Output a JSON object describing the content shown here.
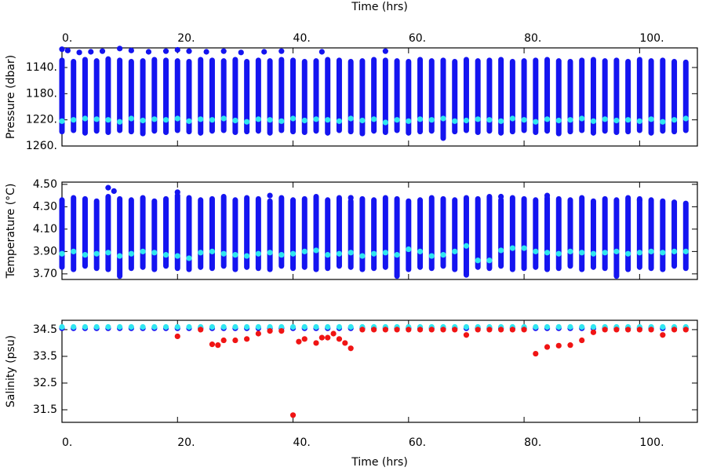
{
  "chart_data": [
    {
      "type": "scatter",
      "x_label": "Time (hrs)",
      "x_axis": "top",
      "y_label": "Pressure (dbar)",
      "xlim": [
        0,
        110
      ],
      "xticks": [
        {
          "value": 0,
          "label": "0."
        },
        {
          "value": 20,
          "label": "20."
        },
        {
          "value": 40,
          "label": "40."
        },
        {
          "value": 60,
          "label": "60."
        },
        {
          "value": 80,
          "label": "80."
        },
        {
          "value": 100,
          "label": "100."
        }
      ],
      "ylim": [
        1110,
        1260
      ],
      "y_inverted": true,
      "yticks": [
        {
          "value": 1140,
          "label": "1140."
        },
        {
          "value": 1180,
          "label": "1180."
        },
        {
          "value": 1220,
          "label": "1220."
        },
        {
          "value": 1260,
          "label": "1260."
        }
      ],
      "series": [
        {
          "kind": "range",
          "color": "#1414f0",
          "x": [
            0,
            2,
            4,
            6,
            8,
            10,
            12,
            14,
            16,
            18,
            20,
            22,
            24,
            26,
            28,
            30,
            32,
            34,
            36,
            38,
            40,
            42,
            44,
            46,
            48,
            50,
            52,
            54,
            56,
            58,
            60,
            62,
            64,
            66,
            68,
            70,
            72,
            74,
            76,
            78,
            80,
            82,
            84,
            86,
            88,
            90,
            92,
            94,
            96,
            98,
            100,
            102,
            104,
            106,
            108
          ],
          "low": [
            1129,
            1131,
            1128,
            1130,
            1127,
            1129,
            1131,
            1130,
            1128,
            1129,
            1130,
            1131,
            1128,
            1129,
            1130,
            1128,
            1131,
            1129,
            1130,
            1128,
            1129,
            1131,
            1130,
            1128,
            1129,
            1131,
            1130,
            1128,
            1129,
            1130,
            1131,
            1128,
            1130,
            1129,
            1131,
            1128,
            1130,
            1129,
            1128,
            1131,
            1130,
            1129,
            1128,
            1130,
            1131,
            1129,
            1128,
            1130,
            1129,
            1131,
            1128,
            1130,
            1129,
            1131,
            1132
          ],
          "high": [
            1238,
            1236,
            1240,
            1237,
            1239,
            1236,
            1238,
            1241,
            1237,
            1239,
            1236,
            1238,
            1240,
            1237,
            1236,
            1239,
            1238,
            1237,
            1240,
            1236,
            1238,
            1239,
            1237,
            1240,
            1236,
            1238,
            1241,
            1237,
            1239,
            1236,
            1240,
            1238,
            1237,
            1248,
            1238,
            1236,
            1239,
            1237,
            1240,
            1238,
            1236,
            1239,
            1237,
            1241,
            1238,
            1236,
            1240,
            1237,
            1239,
            1238,
            1236,
            1240,
            1237,
            1238,
            1236
          ]
        },
        {
          "kind": "points",
          "color": "#1414f0",
          "x": [
            0,
            1,
            3,
            5,
            7,
            10,
            12,
            15,
            18,
            20,
            22,
            25,
            28,
            31,
            35,
            38,
            45,
            56
          ],
          "values": [
            1112,
            1114,
            1117,
            1116,
            1115,
            1111,
            1114,
            1116,
            1115,
            1113,
            1115,
            1116,
            1115,
            1117,
            1116,
            1115,
            1116,
            1115
          ]
        },
        {
          "kind": "points",
          "color": "#30e6f0",
          "x": [
            0,
            2,
            4,
            6,
            8,
            10,
            12,
            14,
            16,
            18,
            20,
            22,
            24,
            26,
            28,
            30,
            32,
            34,
            36,
            38,
            40,
            42,
            44,
            46,
            48,
            50,
            52,
            54,
            56,
            58,
            60,
            62,
            64,
            66,
            68,
            70,
            72,
            74,
            76,
            78,
            80,
            82,
            84,
            86,
            88,
            90,
            92,
            94,
            96,
            98,
            100,
            102,
            104,
            106,
            108
          ],
          "values": [
            1222,
            1220,
            1218,
            1219,
            1220,
            1223,
            1218,
            1221,
            1219,
            1220,
            1218,
            1222,
            1219,
            1220,
            1218,
            1221,
            1223,
            1219,
            1220,
            1222,
            1218,
            1221,
            1219,
            1220,
            1222,
            1218,
            1221,
            1219,
            1224,
            1220,
            1222,
            1219,
            1220,
            1218,
            1222,
            1221,
            1219,
            1220,
            1222,
            1218,
            1220,
            1223,
            1219,
            1221,
            1220,
            1218,
            1222,
            1219,
            1221,
            1220,
            1222,
            1219,
            1223,
            1220,
            1218
          ]
        }
      ]
    },
    {
      "type": "scatter",
      "y_label": "Temperature (°C)",
      "xlim": [
        0,
        110
      ],
      "xticks": [
        0,
        20,
        40,
        60,
        80,
        100
      ],
      "ylim": [
        3.65,
        4.52
      ],
      "yticks": [
        {
          "value": 3.7,
          "label": "3.70"
        },
        {
          "value": 3.9,
          "label": "3.90"
        },
        {
          "value": 4.1,
          "label": "4.10"
        },
        {
          "value": 4.3,
          "label": "4.30"
        },
        {
          "value": 4.5,
          "label": "4.50"
        }
      ],
      "series": [
        {
          "kind": "range",
          "color": "#1414f0",
          "x": [
            0,
            2,
            4,
            6,
            8,
            10,
            12,
            14,
            16,
            18,
            20,
            22,
            24,
            26,
            28,
            30,
            32,
            34,
            36,
            38,
            40,
            42,
            44,
            46,
            48,
            50,
            52,
            54,
            56,
            58,
            60,
            62,
            64,
            66,
            68,
            70,
            72,
            74,
            76,
            78,
            80,
            82,
            84,
            86,
            88,
            90,
            92,
            94,
            96,
            98,
            100,
            102,
            104,
            106,
            108
          ],
          "low": [
            3.76,
            3.74,
            3.77,
            3.75,
            3.74,
            3.68,
            3.75,
            3.76,
            3.74,
            3.77,
            3.75,
            3.74,
            3.76,
            3.75,
            3.77,
            3.74,
            3.76,
            3.75,
            3.74,
            3.77,
            3.75,
            3.76,
            3.74,
            3.75,
            3.77,
            3.76,
            3.74,
            3.75,
            3.76,
            3.68,
            3.74,
            3.76,
            3.75,
            3.77,
            3.74,
            3.69,
            3.76,
            3.75,
            3.77,
            3.74,
            3.75,
            3.76,
            3.74,
            3.75,
            3.77,
            3.74,
            3.76,
            3.75,
            3.68,
            3.74,
            3.76,
            3.75,
            3.74,
            3.77,
            3.75
          ],
          "high": [
            4.36,
            4.38,
            4.37,
            4.35,
            4.39,
            4.37,
            4.36,
            4.38,
            4.35,
            4.37,
            4.4,
            4.38,
            4.36,
            4.37,
            4.39,
            4.36,
            4.38,
            4.37,
            4.35,
            4.38,
            4.36,
            4.37,
            4.39,
            4.36,
            4.38,
            4.35,
            4.37,
            4.36,
            4.38,
            4.37,
            4.35,
            4.36,
            4.38,
            4.37,
            4.36,
            4.38,
            4.37,
            4.39,
            4.36,
            4.38,
            4.37,
            4.36,
            4.38,
            4.37,
            4.36,
            4.38,
            4.35,
            4.37,
            4.36,
            4.38,
            4.37,
            4.36,
            4.35,
            4.34,
            4.33
          ]
        },
        {
          "kind": "points",
          "color": "#1414f0",
          "x": [
            8,
            9,
            20,
            36,
            50,
            76,
            84,
            100
          ],
          "values": [
            4.47,
            4.44,
            4.43,
            4.4,
            4.38,
            4.39,
            4.4,
            4.36
          ]
        },
        {
          "kind": "points",
          "color": "#30e6f0",
          "x": [
            0,
            2,
            4,
            6,
            8,
            10,
            12,
            14,
            16,
            18,
            20,
            22,
            24,
            26,
            28,
            30,
            32,
            34,
            36,
            38,
            40,
            42,
            44,
            46,
            48,
            50,
            52,
            54,
            56,
            58,
            60,
            62,
            64,
            66,
            68,
            70,
            72,
            74,
            76,
            78,
            80,
            82,
            84,
            86,
            88,
            90,
            92,
            94,
            96,
            98,
            100,
            102,
            104,
            106,
            108
          ],
          "values": [
            3.88,
            3.9,
            3.87,
            3.88,
            3.89,
            3.86,
            3.88,
            3.9,
            3.89,
            3.87,
            3.86,
            3.84,
            3.89,
            3.9,
            3.88,
            3.87,
            3.86,
            3.88,
            3.89,
            3.87,
            3.88,
            3.9,
            3.91,
            3.87,
            3.88,
            3.89,
            3.86,
            3.88,
            3.89,
            3.87,
            3.92,
            3.9,
            3.86,
            3.87,
            3.9,
            3.95,
            3.82,
            3.82,
            3.91,
            3.93,
            3.93,
            3.9,
            3.89,
            3.88,
            3.9,
            3.89,
            3.88,
            3.89,
            3.9,
            3.88,
            3.89,
            3.9,
            3.89,
            3.9,
            3.9
          ]
        }
      ]
    },
    {
      "type": "scatter",
      "x_label": "Time (hrs)",
      "x_axis": "bottom",
      "y_label": "Salinity (psu)",
      "xlim": [
        0,
        110
      ],
      "xticks": [
        {
          "value": 0,
          "label": "0."
        },
        {
          "value": 20,
          "label": "20."
        },
        {
          "value": 40,
          "label": "40."
        },
        {
          "value": 60,
          "label": "60."
        },
        {
          "value": 80,
          "label": "80."
        },
        {
          "value": 100,
          "label": "100."
        }
      ],
      "ylim": [
        31.03,
        34.85
      ],
      "yticks": [
        31.5,
        32.5,
        33.5,
        34.5
      ],
      "series": [
        {
          "kind": "points",
          "color": "#1414f0",
          "x": [
            0,
            2,
            4,
            6,
            8,
            10,
            12,
            14,
            16,
            18,
            20,
            22,
            24,
            26,
            28,
            30,
            32,
            34,
            36,
            38,
            40,
            42,
            44,
            46,
            48,
            50,
            52,
            54,
            56,
            58,
            60,
            62,
            64,
            66,
            68,
            70,
            72,
            74,
            76,
            78,
            80,
            82,
            84,
            86,
            88,
            90,
            92,
            94,
            96,
            98,
            100,
            102,
            104,
            106,
            108
          ],
          "values": [
            34.55,
            34.55,
            34.55,
            34.55,
            34.55,
            34.55,
            34.55,
            34.55,
            34.55,
            34.55,
            34.55,
            34.55,
            34.55,
            34.55,
            34.55,
            34.55,
            34.55,
            34.55,
            34.55,
            34.55,
            34.55,
            34.55,
            34.55,
            34.55,
            34.55,
            34.55,
            34.55,
            34.55,
            34.55,
            34.55,
            34.55,
            34.55,
            34.55,
            34.55,
            34.55,
            34.55,
            34.55,
            34.55,
            34.55,
            34.55,
            34.55,
            34.55,
            34.55,
            34.55,
            34.55,
            34.55,
            34.55,
            34.55,
            34.55,
            34.55,
            34.55,
            34.55,
            34.55,
            34.55,
            34.55
          ]
        },
        {
          "kind": "points",
          "color": "#30e6f0",
          "x": [
            0,
            2,
            4,
            6,
            8,
            10,
            12,
            14,
            16,
            18,
            20,
            22,
            24,
            26,
            28,
            30,
            32,
            34,
            36,
            38,
            40,
            42,
            44,
            46,
            48,
            50,
            52,
            54,
            56,
            58,
            60,
            62,
            64,
            66,
            68,
            70,
            72,
            74,
            76,
            78,
            80,
            82,
            84,
            86,
            88,
            90,
            92,
            94,
            96,
            98,
            100,
            102,
            104,
            106,
            108
          ],
          "values": [
            34.6,
            34.6,
            34.6,
            34.6,
            34.6,
            34.6,
            34.6,
            34.6,
            34.6,
            34.6,
            34.6,
            34.6,
            34.6,
            34.6,
            34.6,
            34.6,
            34.6,
            34.6,
            34.6,
            34.6,
            34.6,
            34.6,
            34.6,
            34.6,
            34.6,
            34.6,
            34.6,
            34.6,
            34.6,
            34.6,
            34.6,
            34.6,
            34.6,
            34.6,
            34.6,
            34.6,
            34.6,
            34.6,
            34.6,
            34.6,
            34.6,
            34.6,
            34.6,
            34.6,
            34.6,
            34.6,
            34.6,
            34.6,
            34.6,
            34.6,
            34.6,
            34.6,
            34.6,
            34.6,
            34.6
          ]
        },
        {
          "kind": "points",
          "color": "#f01414",
          "x": [
            20,
            24,
            26,
            27,
            28,
            30,
            32,
            34,
            36,
            38,
            40,
            41,
            42,
            44,
            45,
            46,
            47,
            48,
            49,
            50,
            52,
            54,
            56,
            58,
            60,
            62,
            64,
            66,
            68,
            70,
            72,
            74,
            76,
            78,
            80,
            82,
            84,
            86,
            88,
            90,
            92,
            94,
            96,
            98,
            100,
            102,
            104,
            106,
            108
          ],
          "values": [
            34.25,
            34.5,
            33.95,
            33.92,
            34.1,
            34.1,
            34.15,
            34.35,
            34.45,
            34.45,
            31.3,
            34.05,
            34.15,
            34.0,
            34.2,
            34.2,
            34.35,
            34.15,
            34.0,
            33.8,
            34.5,
            34.5,
            34.5,
            34.5,
            34.5,
            34.5,
            34.5,
            34.5,
            34.5,
            34.3,
            34.5,
            34.5,
            34.5,
            34.5,
            34.5,
            33.6,
            33.85,
            33.9,
            33.92,
            34.1,
            34.4,
            34.5,
            34.5,
            34.5,
            34.5,
            34.5,
            34.3,
            34.5,
            34.5
          ]
        }
      ]
    }
  ]
}
